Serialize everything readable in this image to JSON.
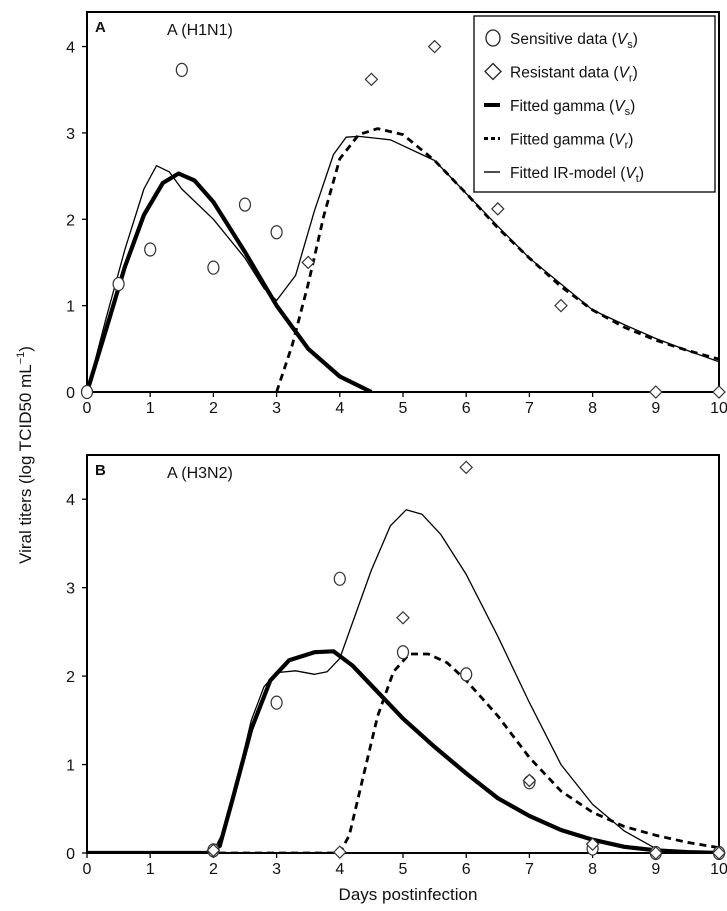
{
  "figure": {
    "ylabel_main": "Viral titers (log TCID50 mL",
    "ylabel_sup": "−1",
    "ylabel_close": ")",
    "xlabel": "Days postinfection"
  },
  "legend": {
    "items": [
      {
        "marker": "circle",
        "text": "Sensitive data (",
        "var": "V",
        "sub": "s",
        "close": ")"
      },
      {
        "marker": "diamond",
        "text": "Resistant data (",
        "var": "V",
        "sub": "r",
        "close": ")"
      },
      {
        "marker": "thick-line",
        "text": "Fitted gamma (",
        "var": "V",
        "sub": "s",
        "close": ")"
      },
      {
        "marker": "dashed-line",
        "text": "Fitted gamma (",
        "var": "V",
        "sub": "r",
        "close": ")"
      },
      {
        "marker": "thin-line",
        "text": "Fitted IR-model (",
        "var": "V",
        "sub": "t",
        "close": ")"
      }
    ]
  },
  "chart_data": [
    {
      "type": "scatter",
      "panel_letter": "A",
      "title": "A (H1N1)",
      "xlim": [
        0,
        10
      ],
      "ylim": [
        0,
        4.4
      ],
      "xticks": [
        0,
        1,
        2,
        3,
        4,
        5,
        6,
        7,
        8,
        9,
        10
      ],
      "yticks": [
        0,
        1,
        2,
        3,
        4
      ],
      "grid": false,
      "legend_position": "top-right",
      "series": [
        {
          "name": "Sensitive data (Vs)",
          "kind": "circle",
          "points": [
            [
              0,
              0
            ],
            [
              0.5,
              1.25
            ],
            [
              1,
              1.65
            ],
            [
              1.5,
              3.73
            ],
            [
              2,
              1.44
            ],
            [
              2.5,
              2.17
            ],
            [
              3,
              1.85
            ]
          ]
        },
        {
          "name": "Resistant data (Vr)",
          "kind": "diamond",
          "points": [
            [
              3.5,
              1.5
            ],
            [
              4.5,
              3.62
            ],
            [
              5.5,
              4.0
            ],
            [
              6.5,
              2.12
            ],
            [
              7.5,
              1.0
            ],
            [
              9,
              0
            ],
            [
              10,
              0
            ]
          ]
        },
        {
          "name": "Fitted gamma (Vs)",
          "kind": "thick-line",
          "points": [
            [
              0,
              0
            ],
            [
              0.3,
              0.72
            ],
            [
              0.6,
              1.45
            ],
            [
              0.9,
              2.05
            ],
            [
              1.2,
              2.42
            ],
            [
              1.45,
              2.53
            ],
            [
              1.7,
              2.45
            ],
            [
              2.0,
              2.2
            ],
            [
              2.5,
              1.62
            ],
            [
              3.0,
              1.0
            ],
            [
              3.5,
              0.5
            ],
            [
              4.0,
              0.18
            ],
            [
              4.5,
              0
            ]
          ]
        },
        {
          "name": "Fitted gamma (Vr)",
          "kind": "dashed-line",
          "points": [
            [
              3.0,
              0
            ],
            [
              3.25,
              0.55
            ],
            [
              3.5,
              1.25
            ],
            [
              3.75,
              2.05
            ],
            [
              4.0,
              2.7
            ],
            [
              4.3,
              2.98
            ],
            [
              4.6,
              3.05
            ],
            [
              5.0,
              2.98
            ],
            [
              5.5,
              2.68
            ],
            [
              6.0,
              2.3
            ],
            [
              6.5,
              1.9
            ],
            [
              7.0,
              1.55
            ],
            [
              7.5,
              1.22
            ],
            [
              8.0,
              0.95
            ],
            [
              8.5,
              0.75
            ],
            [
              9.0,
              0.6
            ],
            [
              9.5,
              0.48
            ],
            [
              10,
              0.38
            ]
          ]
        },
        {
          "name": "Fitted IR-model (Vt)",
          "kind": "thin-line",
          "points": [
            [
              0,
              0
            ],
            [
              0.3,
              0.85
            ],
            [
              0.6,
              1.65
            ],
            [
              0.9,
              2.35
            ],
            [
              1.1,
              2.62
            ],
            [
              1.3,
              2.55
            ],
            [
              1.5,
              2.35
            ],
            [
              2.0,
              2.0
            ],
            [
              2.5,
              1.55
            ],
            [
              2.8,
              1.2
            ],
            [
              3.0,
              1.06
            ],
            [
              3.3,
              1.35
            ],
            [
              3.6,
              2.1
            ],
            [
              3.9,
              2.75
            ],
            [
              4.1,
              2.95
            ],
            [
              4.3,
              2.96
            ],
            [
              4.8,
              2.92
            ],
            [
              5.5,
              2.68
            ],
            [
              6.0,
              2.3
            ],
            [
              6.5,
              1.92
            ],
            [
              7.0,
              1.55
            ],
            [
              7.5,
              1.25
            ],
            [
              8.0,
              0.95
            ],
            [
              8.5,
              0.78
            ],
            [
              9.0,
              0.62
            ],
            [
              9.5,
              0.48
            ],
            [
              10,
              0.35
            ]
          ]
        }
      ]
    },
    {
      "type": "scatter",
      "panel_letter": "B",
      "title": "A (H3N2)",
      "xlim": [
        0,
        10
      ],
      "ylim": [
        0,
        4.5
      ],
      "xticks": [
        0,
        1,
        2,
        3,
        4,
        5,
        6,
        7,
        8,
        9,
        10
      ],
      "yticks": [
        0,
        1,
        2,
        3,
        4
      ],
      "grid": false,
      "series": [
        {
          "name": "Sensitive data (Vs)",
          "kind": "circle",
          "points": [
            [
              2,
              0.03
            ],
            [
              3,
              1.7
            ],
            [
              4,
              3.1
            ],
            [
              5,
              2.27
            ],
            [
              6,
              2.02
            ],
            [
              7,
              0.8
            ],
            [
              8,
              0.05
            ],
            [
              9,
              0
            ],
            [
              10,
              0
            ]
          ]
        },
        {
          "name": "Resistant data (Vr)",
          "kind": "diamond",
          "points": [
            [
              2,
              0.03
            ],
            [
              4,
              0.01
            ],
            [
              5,
              2.66
            ],
            [
              6,
              4.36
            ],
            [
              7,
              0.82
            ],
            [
              8,
              0.1
            ],
            [
              9,
              0
            ],
            [
              10,
              0
            ]
          ]
        },
        {
          "name": "Fitted gamma (Vs)",
          "kind": "thick-line",
          "points": [
            [
              0,
              0
            ],
            [
              1.9,
              0
            ],
            [
              2.1,
              0.08
            ],
            [
              2.3,
              0.6
            ],
            [
              2.6,
              1.4
            ],
            [
              2.9,
              1.95
            ],
            [
              3.2,
              2.18
            ],
            [
              3.6,
              2.27
            ],
            [
              3.9,
              2.28
            ],
            [
              4.2,
              2.12
            ],
            [
              4.6,
              1.82
            ],
            [
              5.0,
              1.52
            ],
            [
              5.5,
              1.2
            ],
            [
              6.0,
              0.9
            ],
            [
              6.5,
              0.62
            ],
            [
              7.0,
              0.42
            ],
            [
              7.5,
              0.26
            ],
            [
              8.0,
              0.15
            ],
            [
              8.5,
              0.07
            ],
            [
              9.0,
              0.03
            ],
            [
              9.5,
              0.01
            ],
            [
              10,
              0
            ]
          ]
        },
        {
          "name": "Fitted gamma (Vr)",
          "kind": "dashed-line",
          "points": [
            [
              0,
              0
            ],
            [
              4.0,
              0
            ],
            [
              4.15,
              0.2
            ],
            [
              4.35,
              0.8
            ],
            [
              4.6,
              1.55
            ],
            [
              4.85,
              2.05
            ],
            [
              5.1,
              2.25
            ],
            [
              5.4,
              2.25
            ],
            [
              5.7,
              2.15
            ],
            [
              6.0,
              1.95
            ],
            [
              6.5,
              1.55
            ],
            [
              7.0,
              1.08
            ],
            [
              7.5,
              0.7
            ],
            [
              8.0,
              0.46
            ],
            [
              8.5,
              0.3
            ],
            [
              9.0,
              0.2
            ],
            [
              9.5,
              0.12
            ],
            [
              10,
              0.06
            ]
          ]
        },
        {
          "name": "Fitted IR-model (Vt)",
          "kind": "thin-line",
          "points": [
            [
              2.0,
              0.02
            ],
            [
              2.2,
              0.3
            ],
            [
              2.4,
              0.9
            ],
            [
              2.6,
              1.5
            ],
            [
              2.8,
              1.88
            ],
            [
              3.0,
              2.04
            ],
            [
              3.3,
              2.06
            ],
            [
              3.6,
              2.02
            ],
            [
              3.8,
              2.05
            ],
            [
              4.0,
              2.2
            ],
            [
              4.2,
              2.6
            ],
            [
              4.5,
              3.2
            ],
            [
              4.8,
              3.7
            ],
            [
              5.05,
              3.88
            ],
            [
              5.3,
              3.83
            ],
            [
              5.6,
              3.6
            ],
            [
              6.0,
              3.15
            ],
            [
              6.5,
              2.45
            ],
            [
              7.0,
              1.7
            ],
            [
              7.5,
              1.0
            ],
            [
              8.0,
              0.55
            ],
            [
              8.5,
              0.25
            ],
            [
              9.0,
              0.05
            ],
            [
              9.3,
              0.0
            ],
            [
              10,
              0
            ]
          ]
        }
      ]
    }
  ]
}
